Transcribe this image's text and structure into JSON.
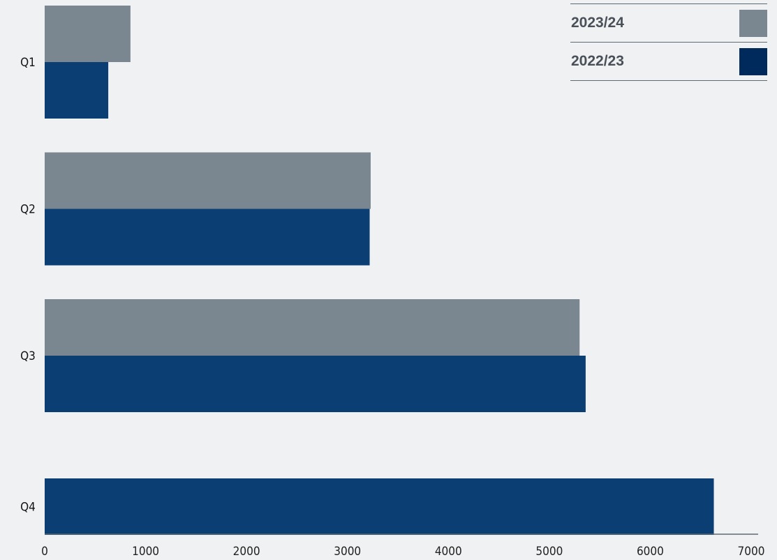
{
  "chart_data": {
    "type": "bar",
    "orientation": "horizontal",
    "categories": [
      "Q1",
      "Q2",
      "Q3",
      "Q4"
    ],
    "series": [
      {
        "name": "2023/24",
        "color": "#7a8790",
        "values": [
          850,
          3230,
          5300,
          null
        ]
      },
      {
        "name": "2022/23",
        "color": "#0b3f73",
        "values": [
          630,
          3220,
          5360,
          6630
        ]
      }
    ],
    "xlim": [
      0,
      7000
    ],
    "xticks": [
      "0",
      "1000",
      "2000",
      "3000",
      "4000",
      "5000",
      "6000",
      "7000"
    ],
    "title": "",
    "xlabel": "",
    "ylabel": "",
    "grid": false,
    "legend_position": "top-right",
    "axis_color": "#5e6a73"
  },
  "legend": {
    "items": [
      {
        "label": "2023/24",
        "color": "#7a8790"
      },
      {
        "label": "2022/23",
        "color": "#002a5c"
      }
    ]
  }
}
